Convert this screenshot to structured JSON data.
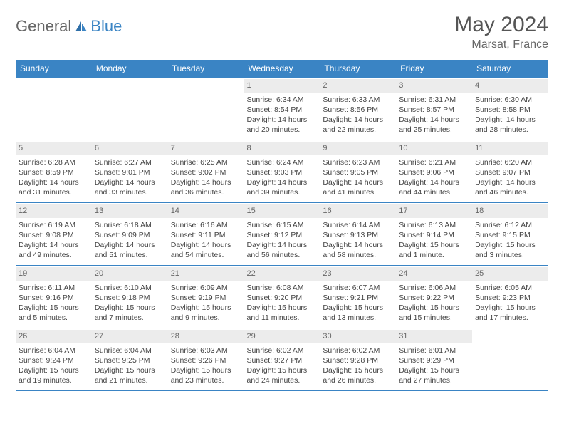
{
  "brand": {
    "part1": "General",
    "part2": "Blue"
  },
  "title": "May 2024",
  "location": "Marsat, France",
  "colors": {
    "header_bg": "#3a84c4",
    "header_text": "#ffffff",
    "daynum_bg": "#ececec",
    "border": "#3a84c4",
    "text": "#444444"
  },
  "weekdays": [
    "Sunday",
    "Monday",
    "Tuesday",
    "Wednesday",
    "Thursday",
    "Friday",
    "Saturday"
  ],
  "weeks": [
    [
      {
        "empty": true
      },
      {
        "empty": true
      },
      {
        "empty": true
      },
      {
        "day": "1",
        "sunrise": "Sunrise: 6:34 AM",
        "sunset": "Sunset: 8:54 PM",
        "daylight": "Daylight: 14 hours and 20 minutes."
      },
      {
        "day": "2",
        "sunrise": "Sunrise: 6:33 AM",
        "sunset": "Sunset: 8:56 PM",
        "daylight": "Daylight: 14 hours and 22 minutes."
      },
      {
        "day": "3",
        "sunrise": "Sunrise: 6:31 AM",
        "sunset": "Sunset: 8:57 PM",
        "daylight": "Daylight: 14 hours and 25 minutes."
      },
      {
        "day": "4",
        "sunrise": "Sunrise: 6:30 AM",
        "sunset": "Sunset: 8:58 PM",
        "daylight": "Daylight: 14 hours and 28 minutes."
      }
    ],
    [
      {
        "day": "5",
        "sunrise": "Sunrise: 6:28 AM",
        "sunset": "Sunset: 8:59 PM",
        "daylight": "Daylight: 14 hours and 31 minutes."
      },
      {
        "day": "6",
        "sunrise": "Sunrise: 6:27 AM",
        "sunset": "Sunset: 9:01 PM",
        "daylight": "Daylight: 14 hours and 33 minutes."
      },
      {
        "day": "7",
        "sunrise": "Sunrise: 6:25 AM",
        "sunset": "Sunset: 9:02 PM",
        "daylight": "Daylight: 14 hours and 36 minutes."
      },
      {
        "day": "8",
        "sunrise": "Sunrise: 6:24 AM",
        "sunset": "Sunset: 9:03 PM",
        "daylight": "Daylight: 14 hours and 39 minutes."
      },
      {
        "day": "9",
        "sunrise": "Sunrise: 6:23 AM",
        "sunset": "Sunset: 9:05 PM",
        "daylight": "Daylight: 14 hours and 41 minutes."
      },
      {
        "day": "10",
        "sunrise": "Sunrise: 6:21 AM",
        "sunset": "Sunset: 9:06 PM",
        "daylight": "Daylight: 14 hours and 44 minutes."
      },
      {
        "day": "11",
        "sunrise": "Sunrise: 6:20 AM",
        "sunset": "Sunset: 9:07 PM",
        "daylight": "Daylight: 14 hours and 46 minutes."
      }
    ],
    [
      {
        "day": "12",
        "sunrise": "Sunrise: 6:19 AM",
        "sunset": "Sunset: 9:08 PM",
        "daylight": "Daylight: 14 hours and 49 minutes."
      },
      {
        "day": "13",
        "sunrise": "Sunrise: 6:18 AM",
        "sunset": "Sunset: 9:09 PM",
        "daylight": "Daylight: 14 hours and 51 minutes."
      },
      {
        "day": "14",
        "sunrise": "Sunrise: 6:16 AM",
        "sunset": "Sunset: 9:11 PM",
        "daylight": "Daylight: 14 hours and 54 minutes."
      },
      {
        "day": "15",
        "sunrise": "Sunrise: 6:15 AM",
        "sunset": "Sunset: 9:12 PM",
        "daylight": "Daylight: 14 hours and 56 minutes."
      },
      {
        "day": "16",
        "sunrise": "Sunrise: 6:14 AM",
        "sunset": "Sunset: 9:13 PM",
        "daylight": "Daylight: 14 hours and 58 minutes."
      },
      {
        "day": "17",
        "sunrise": "Sunrise: 6:13 AM",
        "sunset": "Sunset: 9:14 PM",
        "daylight": "Daylight: 15 hours and 1 minute."
      },
      {
        "day": "18",
        "sunrise": "Sunrise: 6:12 AM",
        "sunset": "Sunset: 9:15 PM",
        "daylight": "Daylight: 15 hours and 3 minutes."
      }
    ],
    [
      {
        "day": "19",
        "sunrise": "Sunrise: 6:11 AM",
        "sunset": "Sunset: 9:16 PM",
        "daylight": "Daylight: 15 hours and 5 minutes."
      },
      {
        "day": "20",
        "sunrise": "Sunrise: 6:10 AM",
        "sunset": "Sunset: 9:18 PM",
        "daylight": "Daylight: 15 hours and 7 minutes."
      },
      {
        "day": "21",
        "sunrise": "Sunrise: 6:09 AM",
        "sunset": "Sunset: 9:19 PM",
        "daylight": "Daylight: 15 hours and 9 minutes."
      },
      {
        "day": "22",
        "sunrise": "Sunrise: 6:08 AM",
        "sunset": "Sunset: 9:20 PM",
        "daylight": "Daylight: 15 hours and 11 minutes."
      },
      {
        "day": "23",
        "sunrise": "Sunrise: 6:07 AM",
        "sunset": "Sunset: 9:21 PM",
        "daylight": "Daylight: 15 hours and 13 minutes."
      },
      {
        "day": "24",
        "sunrise": "Sunrise: 6:06 AM",
        "sunset": "Sunset: 9:22 PM",
        "daylight": "Daylight: 15 hours and 15 minutes."
      },
      {
        "day": "25",
        "sunrise": "Sunrise: 6:05 AM",
        "sunset": "Sunset: 9:23 PM",
        "daylight": "Daylight: 15 hours and 17 minutes."
      }
    ],
    [
      {
        "day": "26",
        "sunrise": "Sunrise: 6:04 AM",
        "sunset": "Sunset: 9:24 PM",
        "daylight": "Daylight: 15 hours and 19 minutes."
      },
      {
        "day": "27",
        "sunrise": "Sunrise: 6:04 AM",
        "sunset": "Sunset: 9:25 PM",
        "daylight": "Daylight: 15 hours and 21 minutes."
      },
      {
        "day": "28",
        "sunrise": "Sunrise: 6:03 AM",
        "sunset": "Sunset: 9:26 PM",
        "daylight": "Daylight: 15 hours and 23 minutes."
      },
      {
        "day": "29",
        "sunrise": "Sunrise: 6:02 AM",
        "sunset": "Sunset: 9:27 PM",
        "daylight": "Daylight: 15 hours and 24 minutes."
      },
      {
        "day": "30",
        "sunrise": "Sunrise: 6:02 AM",
        "sunset": "Sunset: 9:28 PM",
        "daylight": "Daylight: 15 hours and 26 minutes."
      },
      {
        "day": "31",
        "sunrise": "Sunrise: 6:01 AM",
        "sunset": "Sunset: 9:29 PM",
        "daylight": "Daylight: 15 hours and 27 minutes."
      },
      {
        "empty": true
      }
    ]
  ]
}
